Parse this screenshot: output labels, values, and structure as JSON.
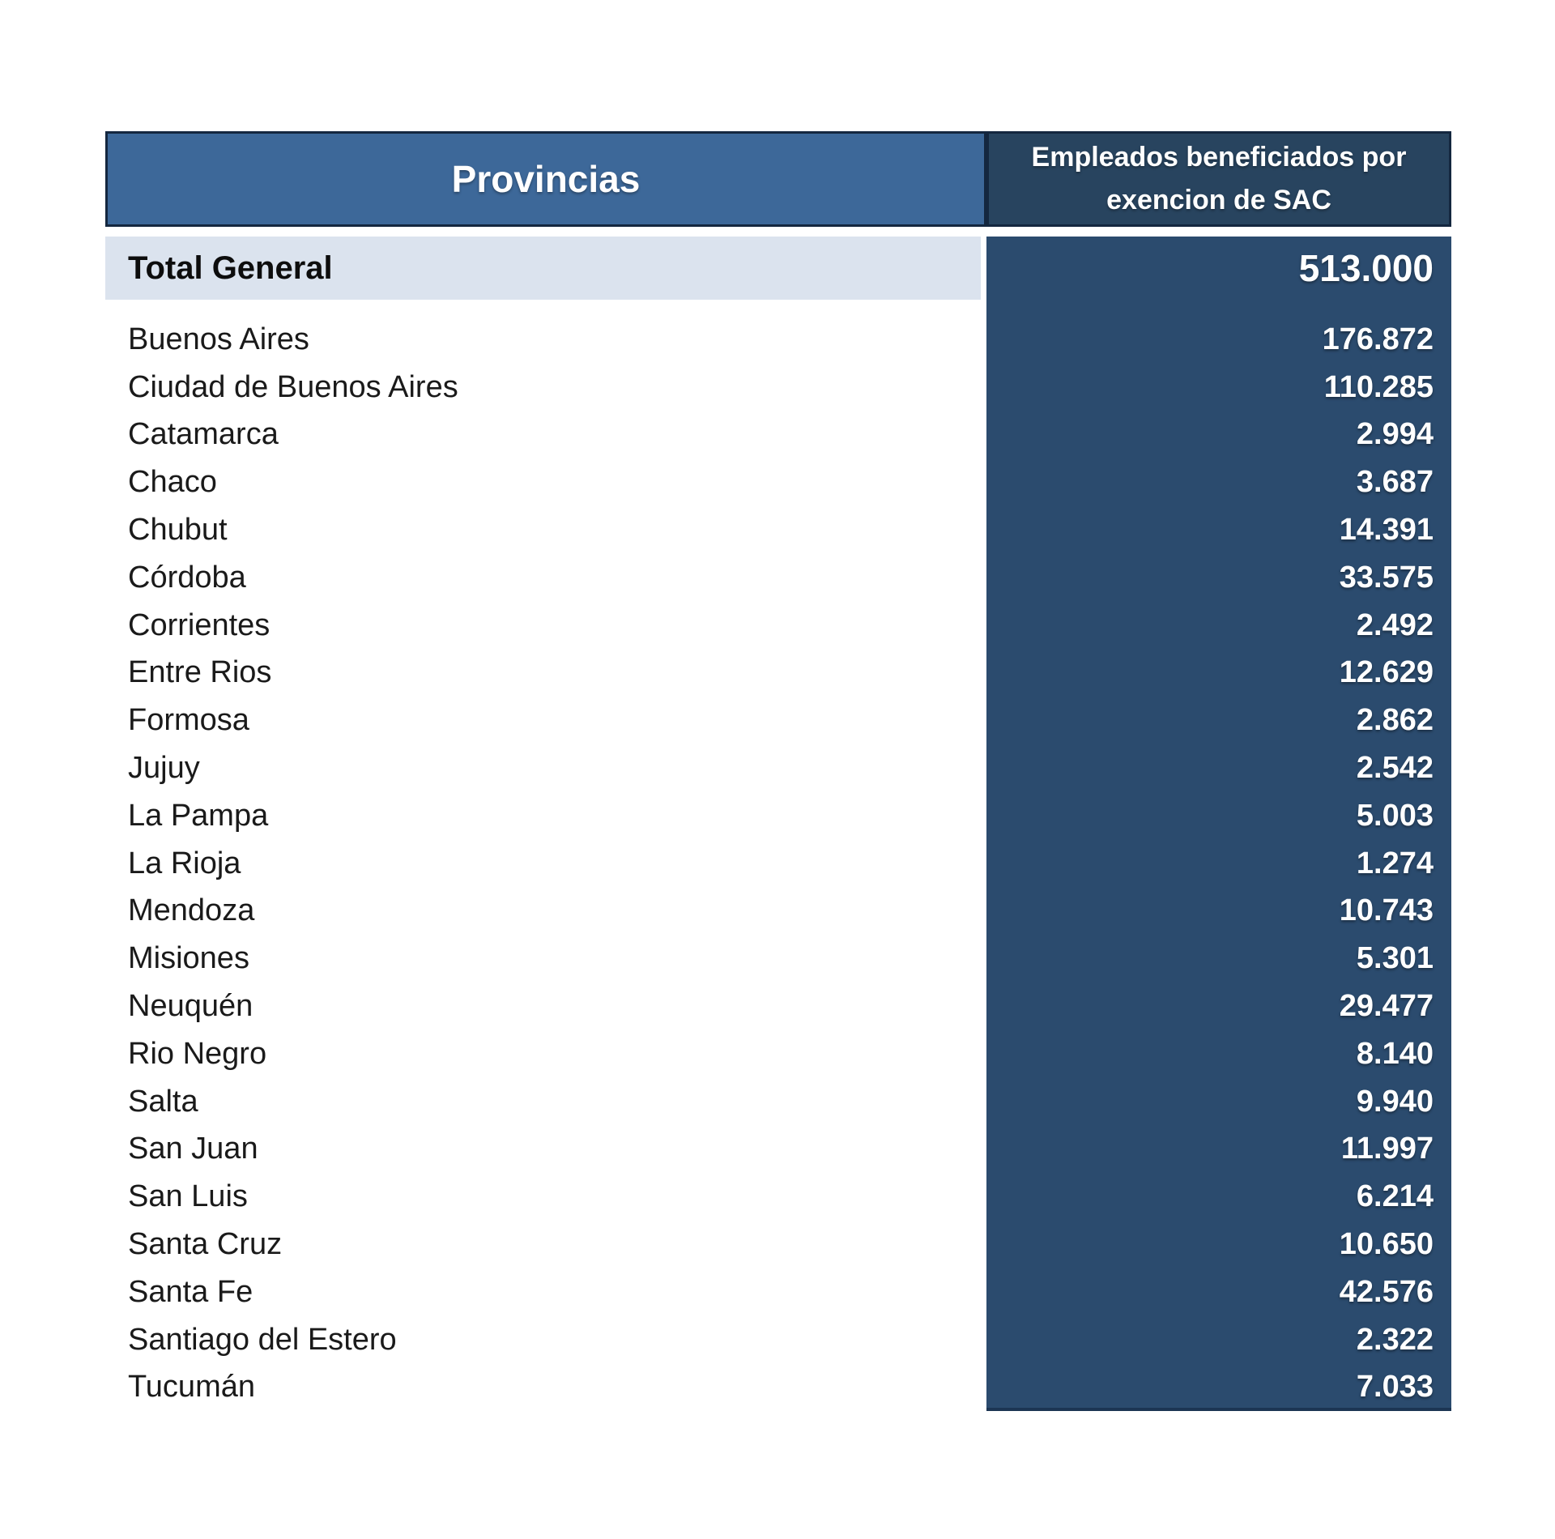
{
  "page": {
    "background": "#ffffff"
  },
  "table": {
    "header": {
      "provinces_label": "Provincias",
      "value_label_line1": "Empleados beneficiados por",
      "value_label_line2": "exencion de SAC"
    },
    "total": {
      "label": "Total General",
      "value": "513.000"
    },
    "rows": [
      {
        "province": "Buenos Aires",
        "value": "176.872"
      },
      {
        "province": "Ciudad de Buenos Aires",
        "value": "110.285"
      },
      {
        "province": "Catamarca",
        "value": "2.994"
      },
      {
        "province": "Chaco",
        "value": "3.687"
      },
      {
        "province": "Chubut",
        "value": "14.391"
      },
      {
        "province": "Córdoba",
        "value": "33.575"
      },
      {
        "province": "Corrientes",
        "value": "2.492"
      },
      {
        "province": "Entre Rios",
        "value": "12.629"
      },
      {
        "province": "Formosa",
        "value": "2.862"
      },
      {
        "province": "Jujuy",
        "value": "2.542"
      },
      {
        "province": "La Pampa",
        "value": "5.003"
      },
      {
        "province": "La Rioja",
        "value": "1.274"
      },
      {
        "province": "Mendoza",
        "value": "10.743"
      },
      {
        "province": "Misiones",
        "value": "5.301"
      },
      {
        "province": "Neuquén",
        "value": "29.477"
      },
      {
        "province": "Rio Negro",
        "value": "8.140"
      },
      {
        "province": "Salta",
        "value": "9.940"
      },
      {
        "province": "San Juan",
        "value": "11.997"
      },
      {
        "province": "San Luis",
        "value": "6.214"
      },
      {
        "province": "Santa Cruz",
        "value": "10.650"
      },
      {
        "province": "Santa Fe",
        "value": "42.576"
      },
      {
        "province": "Santiago del Estero",
        "value": "2.322"
      },
      {
        "province": "Tucumán",
        "value": "7.033"
      }
    ]
  },
  "colors": {
    "header_left_bg": "#3d6899",
    "header_right_bg": "#28445f",
    "value_column_bg": "#2b4b6e",
    "total_row_bg": "#dbe3ee",
    "border_dark": "#14273f",
    "text_dark": "#1a1a1a",
    "text_white": "#ffffff",
    "page_bg": "#ffffff"
  },
  "chart_data": {
    "type": "table",
    "title": "Empleados beneficiados por exencion de SAC",
    "columns": [
      "Provincias",
      "Empleados beneficiados por exencion de SAC"
    ],
    "total": {
      "label": "Total General",
      "value": 513000
    },
    "categories": [
      "Buenos Aires",
      "Ciudad de Buenos Aires",
      "Catamarca",
      "Chaco",
      "Chubut",
      "Córdoba",
      "Corrientes",
      "Entre Rios",
      "Formosa",
      "Jujuy",
      "La Pampa",
      "La Rioja",
      "Mendoza",
      "Misiones",
      "Neuquén",
      "Rio Negro",
      "Salta",
      "San Juan",
      "San Luis",
      "Santa Cruz",
      "Santa Fe",
      "Santiago del Estero",
      "Tucumán"
    ],
    "values": [
      176872,
      110285,
      2994,
      3687,
      14391,
      33575,
      2492,
      12629,
      2862,
      2542,
      5003,
      1274,
      10743,
      5301,
      29477,
      8140,
      9940,
      11997,
      6214,
      10650,
      42576,
      2322,
      7033
    ]
  }
}
